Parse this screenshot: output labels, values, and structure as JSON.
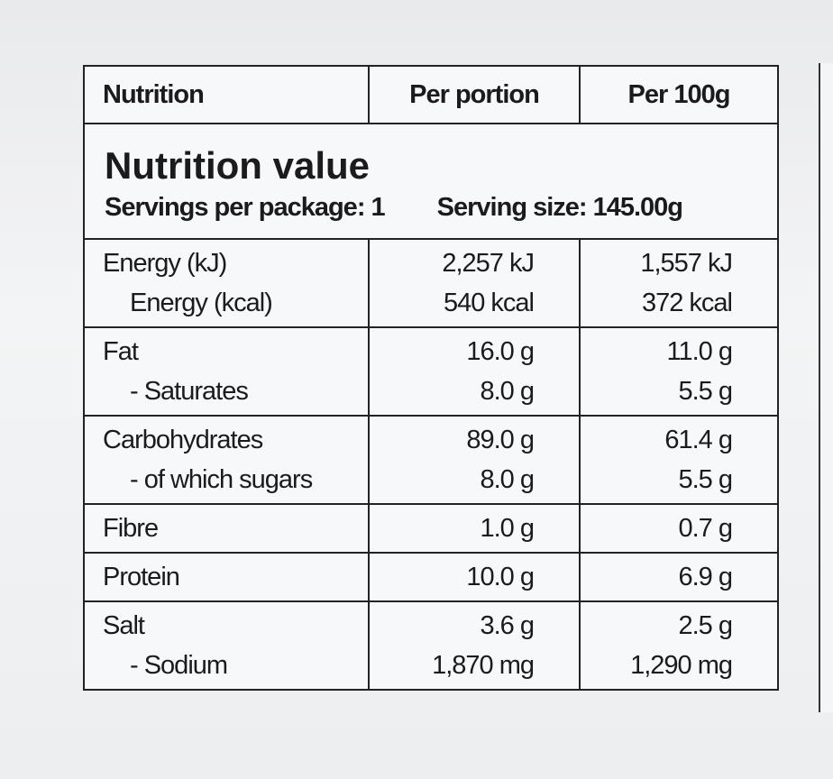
{
  "header": {
    "title": "Nutrition value",
    "servings": "Servings per package: 1",
    "serving_size": "Serving size: 145.00g"
  },
  "table": {
    "columns": [
      "Nutrition",
      "Per portion",
      "Per 100g"
    ],
    "groups": [
      [
        [
          "Energy (kJ)",
          "2,257 kJ",
          "1,557 kJ"
        ],
        [
          "Energy (kcal)",
          "540 kcal",
          "372 kcal"
        ]
      ],
      [
        [
          "Fat",
          "16.0 g",
          "11.0 g"
        ],
        [
          "- Saturates",
          "8.0 g",
          "5.5 g"
        ]
      ],
      [
        [
          "Carbohydrates",
          "89.0 g",
          "61.4 g"
        ],
        [
          "- of which sugars",
          "8.0 g",
          "5.5 g"
        ]
      ],
      [
        [
          "Fibre",
          "1.0 g",
          "0.7 g"
        ]
      ],
      [
        [
          "Protein",
          "10.0 g",
          "6.9 g"
        ]
      ],
      [
        [
          "Salt",
          "3.6 g",
          "2.5 g"
        ],
        [
          "- Sodium",
          "1,870 mg",
          "1,290 mg"
        ]
      ]
    ]
  }
}
